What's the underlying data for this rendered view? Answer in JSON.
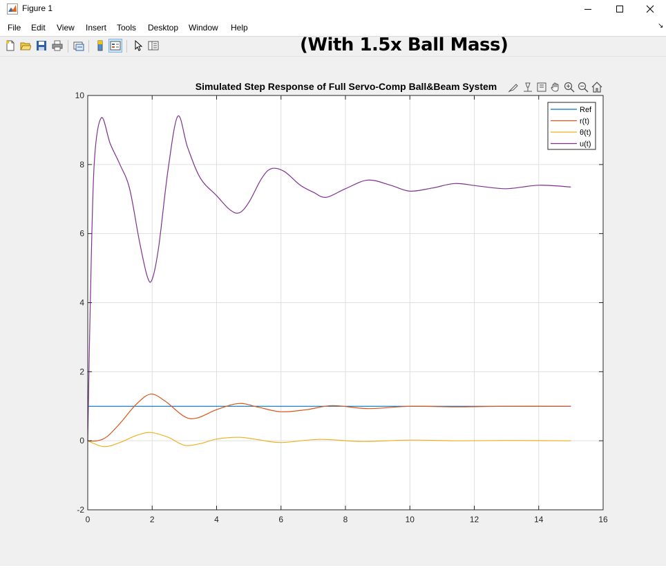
{
  "window": {
    "title": "Figure 1"
  },
  "menu": [
    "File",
    "Edit",
    "View",
    "Insert",
    "Tools",
    "Desktop",
    "Window",
    "Help"
  ],
  "overlay_title": "(With 1.5x Ball Mass)",
  "toolbar": {
    "icons": [
      "new-figure-icon",
      "open-file-icon",
      "save-icon",
      "print-icon",
      "link-plot-icon",
      "colorbar-icon",
      "legend-icon",
      "pointer-icon",
      "property-inspector-icon"
    ]
  },
  "axes_toolbar": {
    "icons": [
      "brush-icon",
      "data-tips-icon",
      "export-icon",
      "pan-icon",
      "zoom-in-icon",
      "zoom-out-icon",
      "home-icon"
    ]
  },
  "colors": {
    "ref": "#0072BD",
    "r": "#D95319",
    "theta": "#EDB120",
    "u": "#7E2F8E"
  },
  "chart_data": {
    "type": "line",
    "title": "Simulated Step Response of Full Servo-Comp Ball&Beam System",
    "xlabel": "",
    "ylabel": "",
    "xlim": [
      0,
      16
    ],
    "ylim": [
      -2,
      10
    ],
    "xticks": [
      "0",
      "2",
      "4",
      "6",
      "8",
      "10",
      "12",
      "14",
      "16"
    ],
    "yticks": [
      "-2",
      "0",
      "2",
      "4",
      "6",
      "8",
      "10"
    ],
    "grid": true,
    "legend_position": "top-right",
    "series": [
      {
        "name": "Ref",
        "color": "#0072BD",
        "x": [
          0,
          15
        ],
        "y": [
          1,
          1
        ]
      },
      {
        "name": "r(t)",
        "color": "#D95319",
        "x": [
          0,
          0.3,
          0.6,
          1.0,
          1.5,
          1.95,
          2.4,
          3.0,
          3.4,
          4.0,
          4.7,
          5.3,
          6.0,
          6.8,
          7.6,
          8.7,
          10.0,
          11.4,
          13.0,
          15.0
        ],
        "y": [
          0,
          0.0,
          0.12,
          0.5,
          1.05,
          1.35,
          1.15,
          0.7,
          0.66,
          0.9,
          1.08,
          0.97,
          0.84,
          0.9,
          1.02,
          0.93,
          1.0,
          0.98,
          1.0,
          1.0
        ]
      },
      {
        "name": "θ(t)",
        "color": "#EDB120",
        "x": [
          0,
          0.5,
          1.0,
          1.5,
          1.95,
          2.5,
          3.0,
          3.5,
          4.0,
          4.7,
          5.3,
          6.0,
          7.2,
          8.5,
          10.0,
          11.5,
          13.0,
          15.0
        ],
        "y": [
          0,
          -0.17,
          -0.05,
          0.15,
          0.24,
          0.1,
          -0.13,
          -0.08,
          0.05,
          0.1,
          0.03,
          -0.05,
          0.04,
          -0.02,
          0.02,
          0.0,
          0.01,
          0.0
        ]
      },
      {
        "name": "u(t)",
        "color": "#7E2F8E",
        "x": [
          0,
          0.08,
          0.2,
          0.42,
          0.7,
          1.0,
          1.3,
          1.6,
          1.85,
          2.0,
          2.2,
          2.5,
          2.8,
          3.1,
          3.5,
          4.0,
          4.4,
          4.7,
          5.0,
          5.4,
          5.7,
          6.1,
          6.6,
          7.0,
          7.4,
          8.0,
          8.7,
          9.4,
          10.0,
          10.7,
          11.4,
          12.1,
          13.0,
          14.0,
          15.0
        ],
        "y": [
          0,
          4.0,
          8.0,
          9.35,
          8.6,
          8.0,
          7.3,
          5.8,
          4.75,
          4.68,
          5.6,
          7.9,
          9.4,
          8.5,
          7.6,
          7.1,
          6.7,
          6.6,
          6.9,
          7.6,
          7.88,
          7.8,
          7.4,
          7.2,
          7.05,
          7.3,
          7.55,
          7.4,
          7.23,
          7.32,
          7.45,
          7.38,
          7.3,
          7.4,
          7.35
        ]
      }
    ]
  }
}
